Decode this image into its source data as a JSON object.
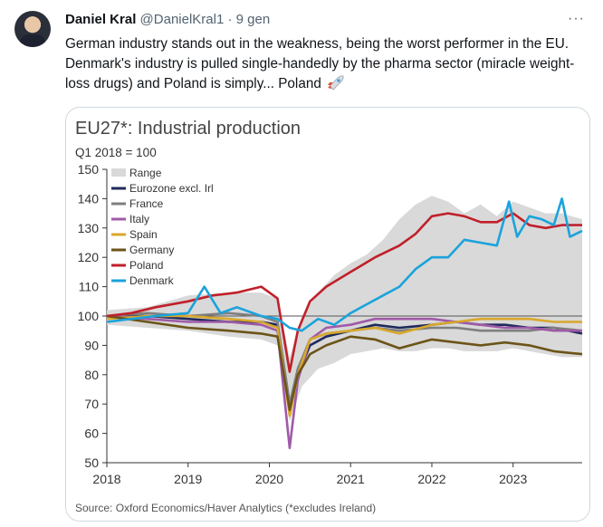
{
  "tweet": {
    "display_name": "Daniel Kral",
    "handle": "@DanielKral1",
    "separator": "·",
    "timestamp": "9 gen",
    "more_label": "···",
    "text": "German industry stands out in the weakness, being the worst performer in the EU. Denmark's industry is pulled single-handedly by the pharma sector (miracle weight-loss drugs) and Poland is simply... Poland",
    "emoji_icon": "rocket-icon"
  },
  "chart_data": {
    "type": "line",
    "title": "EU27*: Industrial production",
    "subtitle": "Q1 2018 = 100",
    "source": "Source: Oxford Economics/Haver Analytics (*excludes Ireland)",
    "ylim": [
      50,
      150
    ],
    "yticks": [
      "150",
      "140",
      "130",
      "120",
      "110",
      "100",
      "90",
      "80",
      "70",
      "60",
      "50"
    ],
    "xlim": [
      2018.0,
      2023.85
    ],
    "xticks": [
      "2018",
      "2019",
      "2020",
      "2021",
      "2022",
      "2023"
    ],
    "reference_line": 100,
    "legend_placement": "top-left",
    "range": {
      "name": "Range",
      "color": "#d9d9d9",
      "x": [
        2018.0,
        2018.5,
        2019.0,
        2019.5,
        2019.9,
        2020.1,
        2020.25,
        2020.4,
        2020.6,
        2020.8,
        2021.0,
        2021.2,
        2021.4,
        2021.6,
        2021.8,
        2022.0,
        2022.2,
        2022.4,
        2022.6,
        2022.8,
        2023.0,
        2023.2,
        2023.4,
        2023.6,
        2023.85
      ],
      "low": [
        97,
        96,
        95,
        93,
        92,
        90,
        64,
        76,
        82,
        84,
        87,
        88,
        89,
        88,
        88,
        89,
        89,
        88,
        88,
        88,
        89,
        88,
        87,
        86,
        86
      ],
      "high": [
        102,
        103,
        107,
        108,
        108,
        106,
        86,
        100,
        108,
        114,
        118,
        121,
        126,
        133,
        138,
        141,
        139,
        135,
        138,
        134,
        139,
        137,
        135,
        135,
        133
      ]
    },
    "series": [
      {
        "name": "Eurozone excl. Irl",
        "color": "#1f2a5c",
        "x": [
          2018.0,
          2018.5,
          2019.0,
          2019.5,
          2019.9,
          2020.1,
          2020.25,
          2020.35,
          2020.5,
          2020.7,
          2021.0,
          2021.3,
          2021.6,
          2022.0,
          2022.3,
          2022.6,
          2022.9,
          2023.2,
          2023.5,
          2023.85
        ],
        "values": [
          100,
          100,
          99,
          98,
          98,
          97,
          70,
          80,
          90,
          93,
          95,
          97,
          96,
          97,
          98,
          97,
          97,
          96,
          96,
          94
        ]
      },
      {
        "name": "France",
        "color": "#7f7f7f",
        "x": [
          2018.0,
          2018.5,
          2019.0,
          2019.5,
          2019.9,
          2020.1,
          2020.25,
          2020.35,
          2020.5,
          2020.7,
          2021.0,
          2021.3,
          2021.6,
          2022.0,
          2022.3,
          2022.6,
          2022.9,
          2023.2,
          2023.5,
          2023.85
        ],
        "values": [
          100,
          101,
          100,
          101,
          100,
          98,
          70,
          82,
          92,
          94,
          95,
          96,
          95,
          96,
          96,
          95,
          95,
          95,
          96,
          95
        ]
      },
      {
        "name": "Italy",
        "color": "#a05aa8",
        "x": [
          2018.0,
          2018.5,
          2019.0,
          2019.5,
          2019.9,
          2020.1,
          2020.25,
          2020.35,
          2020.5,
          2020.7,
          2021.0,
          2021.3,
          2021.6,
          2022.0,
          2022.3,
          2022.6,
          2022.9,
          2023.2,
          2023.5,
          2023.85
        ],
        "values": [
          100,
          99,
          98,
          98,
          97,
          95,
          55,
          78,
          92,
          96,
          97,
          99,
          99,
          99,
          98,
          97,
          96,
          96,
          95,
          95
        ]
      },
      {
        "name": "Spain",
        "color": "#d9a82b",
        "x": [
          2018.0,
          2018.5,
          2019.0,
          2019.5,
          2019.9,
          2020.1,
          2020.25,
          2020.35,
          2020.5,
          2020.7,
          2021.0,
          2021.3,
          2021.6,
          2022.0,
          2022.3,
          2022.6,
          2022.9,
          2023.2,
          2023.5,
          2023.85
        ],
        "values": [
          99,
          100,
          100,
          99,
          98,
          96,
          66,
          80,
          92,
          94,
          95,
          96,
          94,
          97,
          98,
          99,
          99,
          99,
          98,
          98
        ]
      },
      {
        "name": "Germany",
        "color": "#6b5417",
        "x": [
          2018.0,
          2018.5,
          2019.0,
          2019.5,
          2019.9,
          2020.1,
          2020.25,
          2020.35,
          2020.5,
          2020.7,
          2021.0,
          2021.3,
          2021.6,
          2022.0,
          2022.3,
          2022.6,
          2022.9,
          2023.2,
          2023.5,
          2023.85
        ],
        "values": [
          100,
          98,
          96,
          95,
          94,
          93,
          68,
          80,
          87,
          90,
          93,
          92,
          89,
          92,
          91,
          90,
          91,
          90,
          88,
          87
        ]
      },
      {
        "name": "Poland",
        "color": "#c0202a",
        "x": [
          2018.0,
          2018.3,
          2018.6,
          2019.0,
          2019.3,
          2019.6,
          2019.9,
          2020.1,
          2020.25,
          2020.35,
          2020.5,
          2020.7,
          2021.0,
          2021.3,
          2021.6,
          2021.8,
          2022.0,
          2022.2,
          2022.4,
          2022.6,
          2022.8,
          2023.0,
          2023.2,
          2023.4,
          2023.6,
          2023.85
        ],
        "values": [
          100,
          101,
          103,
          105,
          107,
          108,
          110,
          106,
          81,
          95,
          105,
          110,
          115,
          120,
          124,
          128,
          134,
          135,
          134,
          132,
          132,
          135,
          131,
          130,
          131,
          131
        ]
      },
      {
        "name": "Denmark",
        "color": "#1aa3dc",
        "x": [
          2018.0,
          2018.3,
          2018.6,
          2019.0,
          2019.2,
          2019.4,
          2019.6,
          2019.9,
          2020.1,
          2020.25,
          2020.4,
          2020.6,
          2020.8,
          2021.0,
          2021.2,
          2021.4,
          2021.6,
          2021.8,
          2022.0,
          2022.2,
          2022.4,
          2022.6,
          2022.8,
          2022.95,
          2023.05,
          2023.2,
          2023.35,
          2023.5,
          2023.6,
          2023.7,
          2023.85
        ],
        "values": [
          98,
          99,
          100,
          101,
          110,
          101,
          103,
          100,
          99,
          96,
          95,
          99,
          97,
          101,
          104,
          107,
          110,
          116,
          120,
          120,
          126,
          125,
          124,
          139,
          127,
          134,
          133,
          131,
          140,
          127,
          129
        ]
      }
    ]
  }
}
